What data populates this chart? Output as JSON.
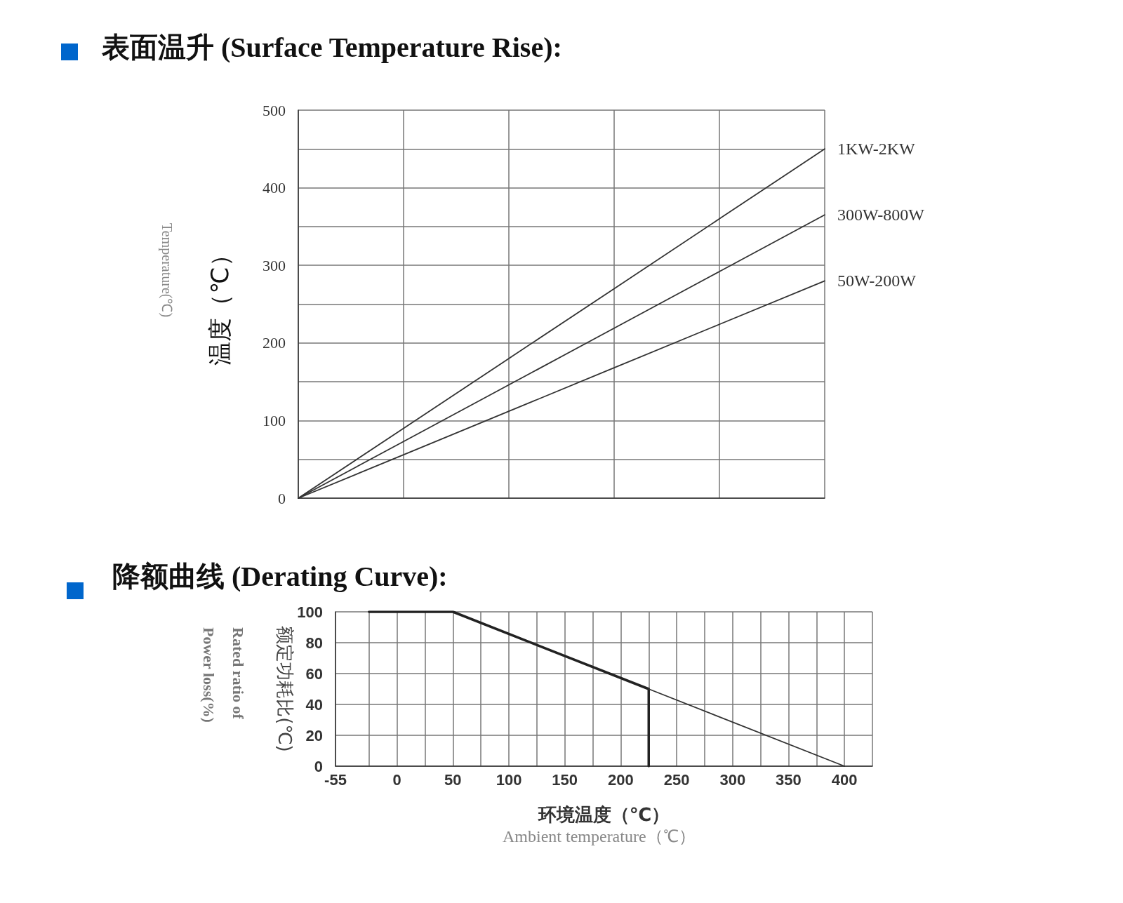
{
  "chart_data": [
    {
      "type": "line",
      "title": "表面温升 (Surface Temperature Rise):",
      "ylabel": "温度（℃）",
      "annotations": [
        "Temperature(℃)"
      ],
      "categories": [
        null,
        null,
        null,
        null,
        null,
        null
      ],
      "series": [
        {
          "name": "1KW-2KW",
          "color": "#333333",
          "values": [
            0,
            90,
            180,
            270,
            360,
            450
          ]
        },
        {
          "name": "300W-800W",
          "color": "#333333",
          "values": [
            0,
            73,
            146,
            219,
            292,
            365
          ]
        },
        {
          "name": "50W-200W",
          "color": "#333333",
          "values": [
            0,
            56,
            112,
            168,
            224,
            280
          ]
        }
      ],
      "ylim": [
        0,
        500
      ],
      "yticks": [
        0,
        {
          "value": 50,
          "label": null
        },
        100,
        {
          "value": 150,
          "label": null
        },
        200,
        {
          "value": 250,
          "label": null
        },
        300,
        {
          "value": 350,
          "label": null
        },
        400,
        {
          "value": 450,
          "label": null
        },
        500
      ],
      "grid": true,
      "marker": "none",
      "line_style": "solid",
      "tick_labels": "y"
    },
    {
      "type": "line",
      "title": "降额曲线 (Derating Curve):",
      "xlabel": "环境温度（℃）",
      "ylabel": "额定功耗比(℃)",
      "annotations": [
        "Ambient temperature（℃）",
        "Rated ratio of Power loss(%)"
      ],
      "series": [
        {
          "color": "#222222",
          "x": [
            -25,
            50,
            225,
            225
          ],
          "values": [
            100,
            100,
            50,
            0
          ]
        },
        {
          "color": "#333333",
          "x": [
            225,
            400
          ],
          "values": [
            50,
            0
          ]
        }
      ],
      "xlim": [
        -55,
        425
      ],
      "xticks": [
        -55,
        {
          "value": -25,
          "label": null
        },
        0,
        {
          "value": 25,
          "label": null
        },
        50,
        {
          "value": 75,
          "label": null
        },
        100,
        {
          "value": 125,
          "label": null
        },
        150,
        {
          "value": 175,
          "label": null
        },
        200,
        {
          "value": 225,
          "label": null
        },
        250,
        {
          "value": 275,
          "label": null
        },
        300,
        {
          "value": 325,
          "label": null
        },
        350,
        {
          "value": 375,
          "label": null
        },
        400,
        {
          "value": 425,
          "label": null
        }
      ],
      "ylim": [
        0,
        100
      ],
      "yticks": [
        0,
        20,
        40,
        60,
        80,
        100
      ],
      "grid": true,
      "marker": "none",
      "line_style": "solid"
    }
  ]
}
